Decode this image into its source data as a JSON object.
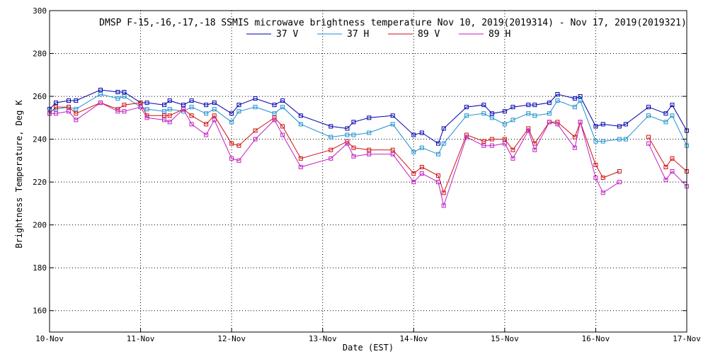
{
  "chart_data": {
    "type": "line",
    "title": "DMSP F-15,-16,-17,-18 SSMIS microwave brightness temperature Nov 10, 2019(2019314) - Nov 17, 2019(2019321)",
    "xlabel": "Date (EST)",
    "ylabel": "Brightness Temperature, Deg K",
    "xlim": [
      0,
      7
    ],
    "ylim": [
      150,
      300
    ],
    "x_ticks": [
      0,
      1,
      2,
      3,
      4,
      5,
      6,
      7
    ],
    "x_tick_labels": [
      "10-Nov",
      "11-Nov",
      "12-Nov",
      "13-Nov",
      "14-Nov",
      "15-Nov",
      "16-Nov",
      "17-Nov"
    ],
    "y_ticks": [
      160,
      180,
      200,
      220,
      240,
      260,
      280,
      300
    ],
    "y_tick_labels": [
      "160",
      "180",
      "200",
      "220",
      "240",
      "260",
      "280",
      "300"
    ],
    "grid": true,
    "legend_position": "top",
    "series": [
      {
        "name": "37 V",
        "color": "#0000b0",
        "points": [
          [
            0.0,
            254
          ],
          [
            0.07,
            257
          ],
          [
            0.21,
            258
          ],
          [
            0.29,
            258
          ],
          [
            0.56,
            263
          ],
          [
            0.75,
            262
          ],
          [
            0.82,
            262
          ],
          [
            1.0,
            257
          ],
          [
            1.07,
            257
          ],
          [
            1.26,
            256
          ],
          [
            1.32,
            258
          ],
          [
            1.47,
            256
          ],
          [
            1.56,
            258
          ],
          [
            1.72,
            256
          ],
          [
            1.81,
            257
          ],
          [
            2.0,
            252
          ],
          [
            2.08,
            256
          ],
          [
            2.26,
            259
          ],
          [
            2.47,
            256
          ],
          [
            2.56,
            258
          ],
          [
            2.76,
            251
          ],
          [
            3.09,
            246
          ],
          [
            3.27,
            245
          ],
          [
            3.34,
            248
          ],
          [
            3.51,
            250
          ],
          [
            3.77,
            251
          ],
          [
            4.0,
            242
          ],
          [
            4.09,
            243
          ],
          [
            4.27,
            238
          ],
          [
            4.33,
            245
          ],
          [
            4.58,
            255
          ],
          [
            4.77,
            256
          ],
          [
            4.86,
            252
          ],
          [
            5.0,
            253
          ],
          [
            5.09,
            255
          ],
          [
            5.26,
            256
          ],
          [
            5.33,
            256
          ],
          [
            5.49,
            257
          ],
          [
            5.58,
            261
          ],
          [
            5.77,
            259
          ],
          [
            5.83,
            260
          ],
          [
            6.0,
            246
          ],
          [
            6.08,
            247
          ],
          [
            6.26,
            246
          ],
          [
            6.33,
            247
          ],
          [
            6.58,
            255
          ],
          [
            6.77,
            252
          ],
          [
            6.84,
            256
          ],
          [
            7.0,
            244
          ]
        ]
      },
      {
        "name": "37 H",
        "color": "#1e90d0",
        "points": [
          [
            0.0,
            253
          ],
          [
            0.07,
            254
          ],
          [
            0.21,
            255
          ],
          [
            0.29,
            254
          ],
          [
            0.56,
            261
          ],
          [
            0.75,
            259
          ],
          [
            0.82,
            260
          ],
          [
            1.0,
            255
          ],
          [
            1.07,
            254
          ],
          [
            1.26,
            253
          ],
          [
            1.32,
            254
          ],
          [
            1.47,
            253
          ],
          [
            1.56,
            255
          ],
          [
            1.72,
            252
          ],
          [
            1.81,
            254
          ],
          [
            2.0,
            248
          ],
          [
            2.08,
            253
          ],
          [
            2.26,
            255
          ],
          [
            2.47,
            252
          ],
          [
            2.56,
            255
          ],
          [
            2.76,
            247
          ],
          [
            3.09,
            241
          ],
          [
            3.27,
            242
          ],
          [
            3.34,
            242
          ],
          [
            3.51,
            243
          ],
          [
            3.77,
            247
          ],
          [
            4.0,
            234
          ],
          [
            4.09,
            236
          ],
          [
            4.27,
            233
          ],
          [
            4.33,
            238
          ],
          [
            4.58,
            251
          ],
          [
            4.77,
            252
          ],
          [
            4.86,
            250
          ],
          [
            5.0,
            247
          ],
          [
            5.09,
            249
          ],
          [
            5.26,
            252
          ],
          [
            5.33,
            251
          ],
          [
            5.49,
            252
          ],
          [
            5.58,
            258
          ],
          [
            5.77,
            255
          ],
          [
            5.83,
            258
          ],
          [
            6.0,
            239
          ],
          [
            6.08,
            239
          ],
          [
            6.26,
            240
          ],
          [
            6.33,
            240
          ],
          [
            6.58,
            251
          ],
          [
            6.77,
            248
          ],
          [
            6.84,
            251
          ],
          [
            7.0,
            237
          ]
        ]
      },
      {
        "name": "89 V",
        "color": "#d01010",
        "segments": [
          [
            [
              0.0,
              252
            ],
            [
              0.07,
              255
            ],
            [
              0.21,
              255
            ],
            [
              0.29,
              252
            ],
            [
              0.56,
              257
            ],
            [
              0.75,
              254
            ],
            [
              0.82,
              256
            ],
            [
              1.0,
              257
            ],
            [
              1.07,
              251
            ],
            [
              1.26,
              251
            ],
            [
              1.32,
              251
            ],
            [
              1.47,
              254
            ],
            [
              1.56,
              251
            ],
            [
              1.72,
              247
            ],
            [
              1.81,
              251
            ],
            [
              2.0,
              238
            ],
            [
              2.08,
              237
            ],
            [
              2.26,
              244
            ],
            [
              2.47,
              250
            ],
            [
              2.56,
              246
            ],
            [
              2.76,
              231
            ],
            [
              3.09,
              235
            ],
            [
              3.27,
              239
            ],
            [
              3.34,
              236
            ],
            [
              3.51,
              235
            ],
            [
              3.77,
              235
            ],
            [
              4.0,
              224
            ],
            [
              4.09,
              227
            ],
            [
              4.27,
              223
            ],
            [
              4.33,
              215
            ],
            [
              4.58,
              242
            ],
            [
              4.77,
              239
            ],
            [
              4.86,
              240
            ],
            [
              5.0,
              240
            ],
            [
              5.09,
              235
            ],
            [
              5.26,
              245
            ],
            [
              5.33,
              238
            ],
            [
              5.49,
              248
            ],
            [
              5.58,
              248
            ],
            [
              5.77,
              241
            ],
            [
              5.83,
              248
            ],
            [
              6.0,
              228
            ],
            [
              6.08,
              222
            ],
            [
              6.26,
              225
            ]
          ],
          [
            [
              6.58,
              241
            ],
            [
              6.77,
              227
            ],
            [
              6.84,
              231
            ],
            [
              7.0,
              225
            ]
          ]
        ]
      },
      {
        "name": "89 H",
        "color": "#c020c0",
        "segments": [
          [
            [
              0.0,
              252
            ],
            [
              0.07,
              252
            ],
            [
              0.21,
              253
            ],
            [
              0.29,
              249
            ],
            [
              0.56,
              257
            ],
            [
              0.75,
              253
            ],
            [
              0.82,
              253
            ],
            [
              1.0,
              255
            ],
            [
              1.07,
              250
            ],
            [
              1.26,
              249
            ],
            [
              1.32,
              248
            ],
            [
              1.47,
              254
            ],
            [
              1.56,
              247
            ],
            [
              1.72,
              242
            ],
            [
              1.81,
              249
            ],
            [
              2.0,
              231
            ],
            [
              2.08,
              230
            ],
            [
              2.26,
              240
            ],
            [
              2.47,
              249
            ],
            [
              2.56,
              242
            ],
            [
              2.76,
              227
            ],
            [
              3.09,
              231
            ],
            [
              3.27,
              238
            ],
            [
              3.34,
              232
            ],
            [
              3.51,
              233
            ],
            [
              3.77,
              233
            ],
            [
              4.0,
              220
            ],
            [
              4.09,
              224
            ],
            [
              4.27,
              220
            ],
            [
              4.33,
              209
            ],
            [
              4.58,
              241
            ],
            [
              4.77,
              237
            ],
            [
              4.86,
              237
            ],
            [
              5.0,
              238
            ],
            [
              5.09,
              231
            ],
            [
              5.26,
              244
            ],
            [
              5.33,
              235
            ],
            [
              5.49,
              248
            ],
            [
              5.58,
              247
            ],
            [
              5.77,
              236
            ],
            [
              5.83,
              248
            ],
            [
              6.0,
              222
            ],
            [
              6.08,
              215
            ],
            [
              6.26,
              220
            ]
          ],
          [
            [
              6.58,
              238
            ],
            [
              6.77,
              221
            ],
            [
              6.84,
              225
            ],
            [
              7.0,
              218
            ]
          ]
        ]
      }
    ]
  }
}
